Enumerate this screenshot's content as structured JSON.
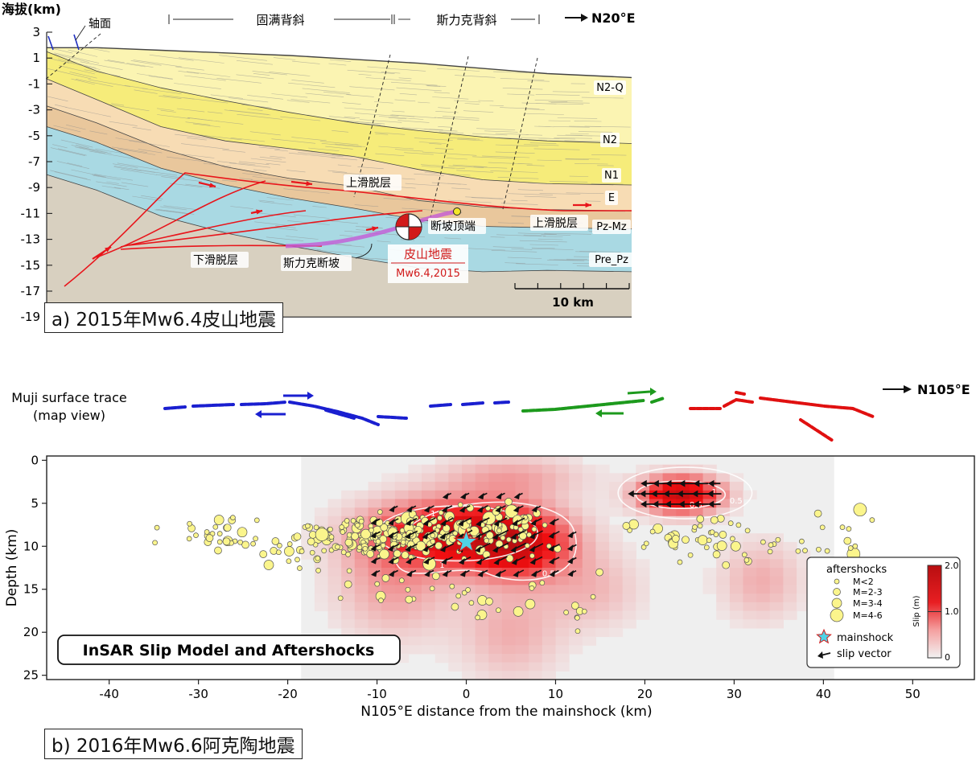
{
  "panel_a": {
    "y_axis_title": "海拔(km)",
    "y_ticks": [
      "3",
      "1",
      "-1",
      "-3",
      "-5",
      "-7",
      "-9",
      "-11",
      "-13",
      "-15",
      "-17",
      "-19"
    ],
    "axial_plane_label": "轴面",
    "anticline_1": "固满背斜",
    "anticline_2": "斯力克背斜",
    "direction": "N20°E",
    "units": [
      "N2-Q",
      "N2",
      "N1",
      "E",
      "Pz-Mz",
      "Pre_Pz"
    ],
    "upper_detachment": "上滑脱层",
    "upper_detachment_2": "上滑脱层",
    "lower_detachment": "下滑脱层",
    "ramp": "斯力克断坡",
    "ramp_tip": "断坡顶端",
    "quake_name": "皮山地震",
    "quake_mag": "Mw6.4,2015",
    "scale": "10 km",
    "caption": "a) 2015年Mw6.4皮山地震",
    "colors": {
      "n2q": "#fbf4b2",
      "n2": "#f6ec7a",
      "n1": "#f7dcb4",
      "e": "#e9c79c",
      "pzmz": "#a9d9e3",
      "prepz": "#d8d0c0",
      "fault": "#e8151b",
      "ramp": "#c45ad6"
    }
  },
  "panel_b": {
    "trace_label_1": "Muji surface trace",
    "trace_label_2": "(map view)",
    "direction": "N105°E",
    "title": "InSAR Slip Model and Aftershocks",
    "y_axis_title": "Depth (km)",
    "x_axis_title": "N105°E distance from the mainshock (km)",
    "caption": "b) 2016年Mw6.6阿克陶地震",
    "legend": {
      "aftershocks": "aftershocks",
      "m1": "M<2",
      "m2": "M=2-3",
      "m3": "M=3-4",
      "m4": "M=4-6",
      "mainshock": "mainshock",
      "slip_vector": "slip vector",
      "colorbar_title": "Slip (m)",
      "cb_ticks": [
        "2.0",
        "1.0",
        "0"
      ]
    },
    "contours": [
      "1",
      "1",
      "0.5",
      "0.5",
      "1",
      "0.5"
    ],
    "colors": {
      "aftershock": "#fbf58c",
      "mainshock": "#4fd3e6",
      "slip_max": "#b80e10",
      "trace_blue": "#1a1fd0",
      "trace_green": "#1d9a1d",
      "trace_red": "#e01010"
    }
  },
  "chart_data": {
    "type": "heatmap",
    "title": "InSAR Slip Model and Aftershocks",
    "xlabel": "N105°E distance from the mainshock (km)",
    "ylabel": "Depth (km)",
    "xlim": [
      -47,
      57
    ],
    "ylim": [
      25.5,
      -0.5
    ],
    "x_ticks": [
      -40,
      -30,
      -20,
      -10,
      0,
      10,
      20,
      30,
      40,
      50
    ],
    "y_ticks": [
      0,
      5,
      10,
      15,
      20,
      25
    ],
    "colorbar": {
      "label": "Slip (m)",
      "range": [
        0,
        2.0
      ],
      "ticks": [
        0,
        1.0,
        2.0
      ]
    },
    "mainshock": {
      "x": 0,
      "depth": 9.5
    },
    "slip_patches": [
      {
        "x": -1,
        "depth": 8.5,
        "peak_slip_m": 1.5
      },
      {
        "x": 6,
        "depth": 9.5,
        "peak_slip_m": 1.3
      },
      {
        "x": 24,
        "depth": 4.0,
        "peak_slip_m": 1.8
      }
    ]
  }
}
